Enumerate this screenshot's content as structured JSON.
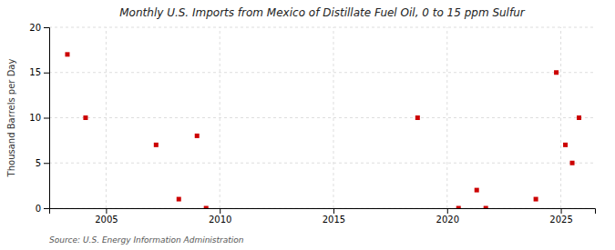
{
  "chart_data": {
    "type": "scatter",
    "title": "Monthly U.S. Imports from Mexico of Distillate Fuel Oil, 0 to 15 ppm Sulfur",
    "ylabel": "Thousand Barrels per Day",
    "source": "Source: U.S. Energy Information Administration",
    "x": [
      2003.3,
      2004.1,
      2007.2,
      2008.2,
      2009.0,
      2009.4,
      2018.7,
      2020.5,
      2021.3,
      2021.7,
      2023.9,
      2024.8,
      2025.2,
      2025.5,
      2025.8
    ],
    "values": [
      17.0,
      10.0,
      7.0,
      1.0,
      8.0,
      0.0,
      10.0,
      0.0,
      2.0,
      0.0,
      1.0,
      15.0,
      7.0,
      5.0,
      10.0
    ],
    "color": "#cc0000",
    "marker": "square",
    "xlim": [
      2002.5,
      2026.5
    ],
    "xticks": [
      2005,
      2010,
      2015,
      2020,
      2025
    ],
    "ylim": [
      0,
      20
    ],
    "yticks": [
      0,
      5,
      10,
      15,
      20
    ],
    "grid": true
  }
}
